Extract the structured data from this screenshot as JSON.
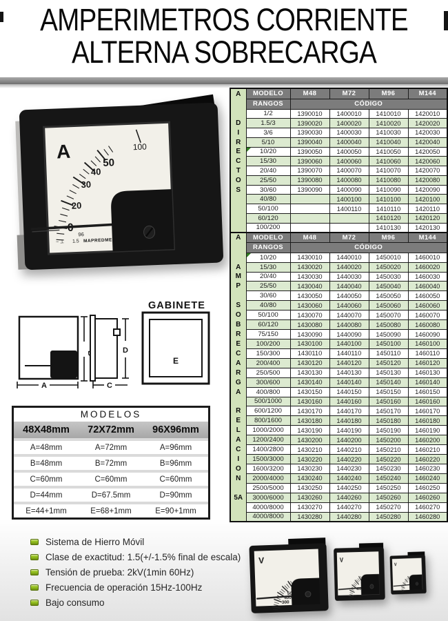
{
  "title": {
    "line1": "AMPERIMETROS CORRIENTE",
    "line2": "ALTERNA SOBRECARGA"
  },
  "colors": {
    "row_green": "#dcead0",
    "letter_column_green": "#d2e3bb",
    "table_header_gray": "#7c7c7c",
    "modelos_header_gray": "#b5b5b5",
    "bullet_green": "#94c11f"
  },
  "code_tables": [
    {
      "group_letter": "A",
      "side_word": "DIRECTOS",
      "col_headers": [
        "MODELO",
        "M48",
        "M72",
        "M96",
        "M144"
      ],
      "subheader_left": "RANGOS",
      "subheader_right": "CÓDIGO",
      "side_letters": [
        "",
        "D",
        "I",
        "R",
        "E",
        "C",
        "T",
        "O",
        "S",
        "",
        "",
        "",
        ""
      ],
      "marked_rows": [
        4
      ],
      "rows": [
        {
          "rango": "1/2",
          "codes": [
            "1390010",
            "1400010",
            "1410010",
            "1420010"
          ]
        },
        {
          "rango": "1.5/3",
          "codes": [
            "1390020",
            "1400020",
            "1410020",
            "1420020"
          ]
        },
        {
          "rango": "3/6",
          "codes": [
            "1390030",
            "1400030",
            "1410030",
            "1420030"
          ]
        },
        {
          "rango": "5/10",
          "codes": [
            "1390040",
            "1400040",
            "1410040",
            "1420040"
          ]
        },
        {
          "rango": "10/20",
          "codes": [
            "1390050",
            "1400050",
            "1410050",
            "1420050"
          ]
        },
        {
          "rango": "15/30",
          "codes": [
            "1390060",
            "1400060",
            "1410060",
            "1420060"
          ]
        },
        {
          "rango": "20/40",
          "codes": [
            "1390070",
            "1400070",
            "1410070",
            "1420070"
          ]
        },
        {
          "rango": "25/50",
          "codes": [
            "1390080",
            "1400080",
            "1410080",
            "1420080"
          ]
        },
        {
          "rango": "30/60",
          "codes": [
            "1390090",
            "1400090",
            "1410090",
            "1420090"
          ]
        },
        {
          "rango": "40/80",
          "codes": [
            "",
            "1400100",
            "1410100",
            "1420100"
          ]
        },
        {
          "rango": "50/100",
          "codes": [
            "",
            "1400110",
            "1410110",
            "1420110"
          ]
        },
        {
          "rango": "60/120",
          "codes": [
            "",
            "",
            "1410120",
            "1420120"
          ]
        },
        {
          "rango": "100/200",
          "codes": [
            "",
            "",
            "1410130",
            "1420130"
          ]
        }
      ]
    },
    {
      "group_letter": "A",
      "side_word": "AMP SOBRECARGA RELACION 5A",
      "col_headers": [
        "MODELO",
        "M48",
        "M72",
        "M96",
        "M144"
      ],
      "subheader_left": "RANGOS",
      "subheader_right": "CÓDIGO",
      "side_letters": [
        "",
        "A",
        "M",
        "P",
        "",
        "S",
        "O",
        "B",
        "R",
        "E",
        "C",
        "A",
        "R",
        "G",
        "A",
        "",
        "R",
        "E",
        "L",
        "A",
        "C",
        "I",
        "O",
        "N",
        "",
        "5A",
        "",
        ""
      ],
      "marked_rows": [
        0
      ],
      "rows": [
        {
          "rango": "10/20",
          "codes": [
            "1430010",
            "1440010",
            "1450010",
            "1460010"
          ]
        },
        {
          "rango": "15/30",
          "codes": [
            "1430020",
            "1440020",
            "1450020",
            "1460020"
          ]
        },
        {
          "rango": "20/40",
          "codes": [
            "1430030",
            "1440030",
            "1450030",
            "1460030"
          ]
        },
        {
          "rango": "25/50",
          "codes": [
            "1430040",
            "1440040",
            "1450040",
            "1460040"
          ]
        },
        {
          "rango": "30/60",
          "codes": [
            "1430050",
            "1440050",
            "1450050",
            "1460050"
          ]
        },
        {
          "rango": "40/80",
          "codes": [
            "1430060",
            "1440060",
            "1450060",
            "1460060"
          ]
        },
        {
          "rango": "50/100",
          "codes": [
            "1430070",
            "1440070",
            "1450070",
            "1460070"
          ]
        },
        {
          "rango": "60/120",
          "codes": [
            "1430080",
            "1440080",
            "1450080",
            "1460080"
          ]
        },
        {
          "rango": "75/150",
          "codes": [
            "1430090",
            "1440090",
            "1450090",
            "1460090"
          ]
        },
        {
          "rango": "100/200",
          "codes": [
            "1430100",
            "1440100",
            "1450100",
            "1460100"
          ]
        },
        {
          "rango": "150/300",
          "codes": [
            "1430110",
            "1440110",
            "1450110",
            "1460110"
          ]
        },
        {
          "rango": "200/400",
          "codes": [
            "1430120",
            "1440120",
            "1450120",
            "1460120"
          ]
        },
        {
          "rango": "250/500",
          "codes": [
            "1430130",
            "1440130",
            "1450130",
            "1460130"
          ]
        },
        {
          "rango": "300/600",
          "codes": [
            "1430140",
            "1440140",
            "1450140",
            "1460140"
          ]
        },
        {
          "rango": "400/800",
          "codes": [
            "1430150",
            "1440150",
            "1450150",
            "1460150"
          ]
        },
        {
          "rango": "500/1000",
          "codes": [
            "1430160",
            "1440160",
            "1450160",
            "1460160"
          ]
        },
        {
          "rango": "600/1200",
          "codes": [
            "1430170",
            "1440170",
            "1450170",
            "1460170"
          ]
        },
        {
          "rango": "800/1600",
          "codes": [
            "1430180",
            "1440180",
            "1450180",
            "1460180"
          ]
        },
        {
          "rango": "1000/2000",
          "codes": [
            "1430190",
            "1440190",
            "1450190",
            "1460190"
          ]
        },
        {
          "rango": "1200/2400",
          "codes": [
            "1430200",
            "1440200",
            "1450200",
            "1460200"
          ]
        },
        {
          "rango": "1400/2800",
          "codes": [
            "1430210",
            "1440210",
            "1450210",
            "1460210"
          ]
        },
        {
          "rango": "1500/3000",
          "codes": [
            "1430220",
            "1440220",
            "1450220",
            "1460220"
          ]
        },
        {
          "rango": "1600/3200",
          "codes": [
            "1430230",
            "1440230",
            "1450230",
            "1460230"
          ]
        },
        {
          "rango": "2000/4000",
          "codes": [
            "1430240",
            "1440240",
            "1450240",
            "1460240"
          ]
        },
        {
          "rango": "2500/5000",
          "codes": [
            "1430250",
            "1440250",
            "1450250",
            "1460250"
          ]
        },
        {
          "rango": "3000/6000",
          "codes": [
            "1430260",
            "1440260",
            "1450260",
            "1460260"
          ]
        },
        {
          "rango": "4000/8000",
          "codes": [
            "1430270",
            "1440270",
            "1450270",
            "1460270"
          ]
        },
        {
          "rango": "4000/8000",
          "codes": [
            "1430280",
            "1440280",
            "1450280",
            "1460280"
          ]
        }
      ]
    }
  ],
  "modelos_table": {
    "title": "MODELOS",
    "columns": [
      "48X48mm",
      "72X72mm",
      "96X96mm"
    ],
    "rows": [
      [
        "A=48mm",
        "A=72mm",
        "A=96mm"
      ],
      [
        "B=48mm",
        "B=72mm",
        "B=96mm"
      ],
      [
        "C=60mm",
        "C=60mm",
        "C=60mm"
      ],
      [
        "D=44mm",
        "D=67.5mm",
        "D=90mm"
      ],
      [
        "E=44+1mm",
        "E=68+1mm",
        "E=90+1mm"
      ]
    ]
  },
  "features": [
    "Sistema de Hierro Móvil",
    "Clase de exactitud: 1.5(+/-1.5% final de escala)",
    "Tensión de prueba: 2kV(1min 60Hz)",
    "Frecuencia de operación 15Hz-100Hz",
    "Bajo consumo"
  ],
  "gabinete": {
    "label": "GABINETE",
    "dim_a": "A",
    "dim_b": "B",
    "dim_c": "C",
    "dim_d": "D",
    "dim_e": "E"
  },
  "main_meter": {
    "unit": "A",
    "scale_labels": [
      "0",
      "20",
      "30",
      "40",
      "50"
    ],
    "overload_label": "100",
    "size_text": "96",
    "symbols_text": "~ ⊥",
    "class_text": "1.5",
    "brand_text": "MAPREDME"
  },
  "small_meters": [
    {
      "unit": "V",
      "scale_labels": [
        "200",
        "300",
        "400",
        "500",
        "600"
      ]
    },
    {
      "unit": "V",
      "scale_labels": [
        "200",
        "400",
        "600"
      ]
    },
    {
      "unit": "V",
      "scale_labels": [
        "200",
        "600"
      ]
    }
  ]
}
